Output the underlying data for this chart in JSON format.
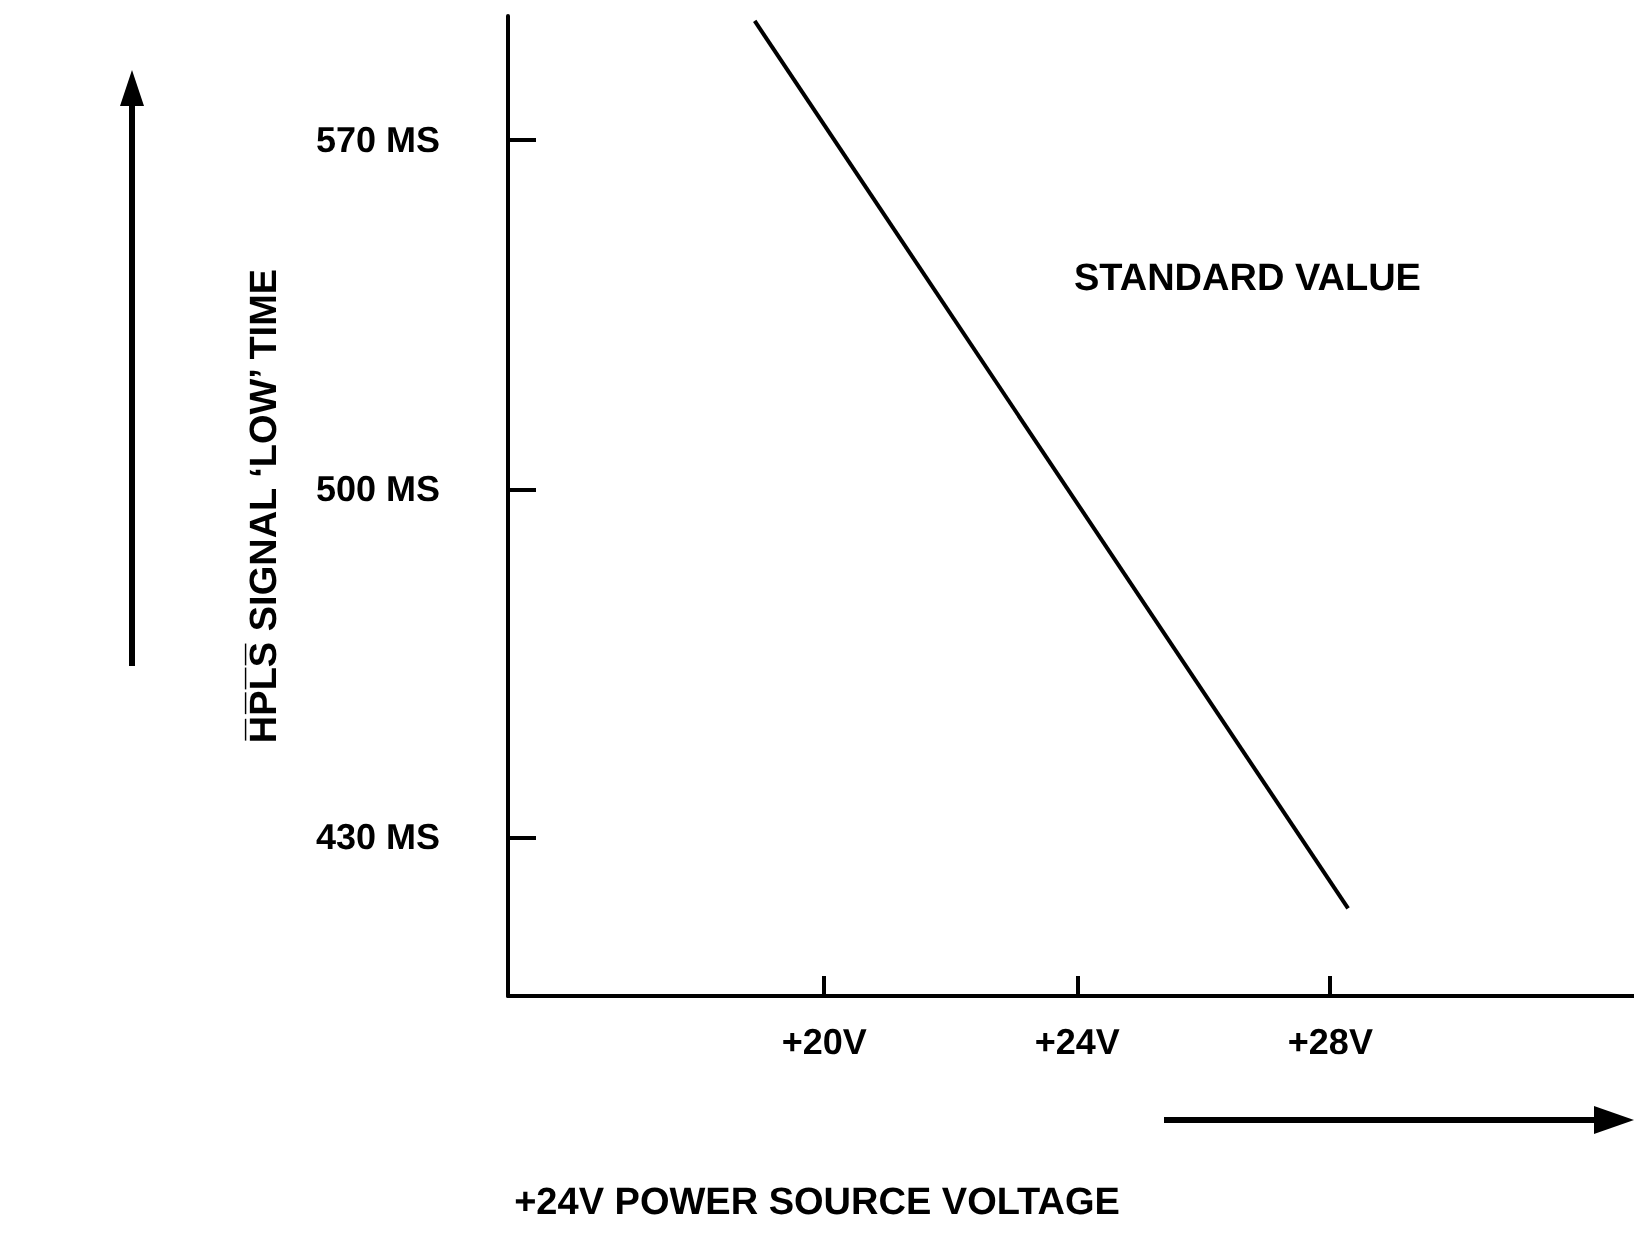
{
  "chart_data": {
    "type": "line",
    "xlabel": "+24V POWER SOURCE VOLTAGE",
    "ylabel": "H̅P̅L̅S̅ SIGNAL ‘LOW’ TIME",
    "annotations": [
      "STANDARD VALUE"
    ],
    "x": [
      18.9,
      28.28
    ],
    "series": [
      {
        "color": "#000000",
        "values": [
          594,
          415.6
        ]
      }
    ],
    "xlim": [
      15,
      32.8
    ],
    "ylim": [
      398,
      595
    ],
    "xticks": [
      {
        "value": 20,
        "label": "+20V"
      },
      {
        "value": 24,
        "label": "+24V"
      },
      {
        "value": 28,
        "label": "+28V"
      }
    ],
    "yticks": [
      {
        "value": 430,
        "label": "430 MS"
      },
      {
        "value": 500,
        "label": "500 MS"
      },
      {
        "value": 570,
        "label": "570 MS"
      }
    ],
    "grid": false,
    "marker": "none",
    "line_style": "solid"
  }
}
